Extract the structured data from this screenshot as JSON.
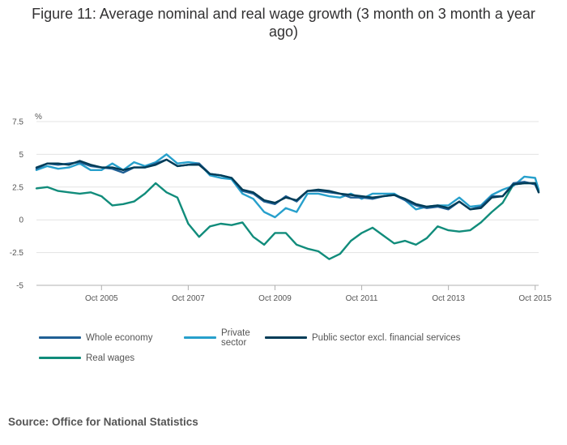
{
  "title": "Figure 11: Average nominal and real wage growth (3 month on 3 month a year ago)",
  "source": "Source: Office for National Statistics",
  "colors": {
    "whole_economy": "#206095",
    "private_sector": "#27a0cc",
    "public_sector": "#003c57",
    "real_wages": "#118c7b",
    "grid": "#e3e3e3",
    "axis": "#b0b0b0"
  },
  "chart_data": {
    "type": "line",
    "ylabel": "%",
    "ylim": [
      -5,
      7.5
    ],
    "yticks": [
      7.5,
      5,
      2.5,
      0,
      -2.5,
      -5
    ],
    "ytick_labels": [
      "7.5",
      "5",
      "2.5",
      "0",
      "-2.5",
      "-5"
    ],
    "xlim": [
      2004.25,
      2015.83
    ],
    "xticks": [
      2005.75,
      2007.75,
      2009.75,
      2011.75,
      2013.75,
      2015.75
    ],
    "xtick_labels": [
      "Oct 2005",
      "Oct 2007",
      "Oct 2009",
      "Oct 2011",
      "Oct 2013",
      "Oct 2015"
    ],
    "legend": [
      "Whole economy",
      "Private sector",
      "Public sector excl. financial services",
      "Real wages"
    ],
    "series": [
      {
        "name": "Whole economy",
        "color_key": "whole_economy",
        "x": [
          2004.25,
          2004.5,
          2004.75,
          2005.0,
          2005.25,
          2005.5,
          2005.75,
          2006.0,
          2006.25,
          2006.5,
          2006.75,
          2007.0,
          2007.25,
          2007.5,
          2007.75,
          2008.0,
          2008.25,
          2008.5,
          2008.75,
          2009.0,
          2009.25,
          2009.5,
          2009.75,
          2010.0,
          2010.25,
          2010.5,
          2010.75,
          2011.0,
          2011.25,
          2011.5,
          2011.75,
          2012.0,
          2012.25,
          2012.5,
          2012.75,
          2013.0,
          2013.25,
          2013.5,
          2013.75,
          2014.0,
          2014.25,
          2014.5,
          2014.75,
          2015.0,
          2015.25,
          2015.5,
          2015.75,
          2015.83
        ],
        "values": [
          3.9,
          4.3,
          4.2,
          4.3,
          4.4,
          4.1,
          4.0,
          3.9,
          3.6,
          4.0,
          4.0,
          4.3,
          4.6,
          4.1,
          4.2,
          4.3,
          3.5,
          3.4,
          3.2,
          2.2,
          2.0,
          1.4,
          1.2,
          1.8,
          1.4,
          2.2,
          2.2,
          2.1,
          2.0,
          1.7,
          1.7,
          1.6,
          1.8,
          1.9,
          1.5,
          1.1,
          0.9,
          1.0,
          0.8,
          1.4,
          0.8,
          1.0,
          1.8,
          1.8,
          2.8,
          2.9,
          2.7,
          2.1
        ]
      },
      {
        "name": "Private sector",
        "color_key": "private_sector",
        "x": [
          2004.25,
          2004.5,
          2004.75,
          2005.0,
          2005.25,
          2005.5,
          2005.75,
          2006.0,
          2006.25,
          2006.5,
          2006.75,
          2007.0,
          2007.25,
          2007.5,
          2007.75,
          2008.0,
          2008.25,
          2008.5,
          2008.75,
          2009.0,
          2009.25,
          2009.5,
          2009.75,
          2010.0,
          2010.25,
          2010.5,
          2010.75,
          2011.0,
          2011.25,
          2011.5,
          2011.75,
          2012.0,
          2012.25,
          2012.5,
          2012.75,
          2013.0,
          2013.25,
          2013.5,
          2013.75,
          2014.0,
          2014.25,
          2014.5,
          2014.75,
          2015.0,
          2015.25,
          2015.5,
          2015.75,
          2015.83
        ],
        "values": [
          3.8,
          4.1,
          3.9,
          4.0,
          4.3,
          3.8,
          3.8,
          4.3,
          3.8,
          4.4,
          4.1,
          4.4,
          5.0,
          4.3,
          4.4,
          4.3,
          3.4,
          3.2,
          3.1,
          2.0,
          1.6,
          0.6,
          0.2,
          0.9,
          0.6,
          2.0,
          2.0,
          1.8,
          1.7,
          2.0,
          1.6,
          2.0,
          2.0,
          2.0,
          1.5,
          0.8,
          1.0,
          1.1,
          1.1,
          1.7,
          1.0,
          1.1,
          1.9,
          2.3,
          2.6,
          3.3,
          3.2,
          2.3
        ]
      },
      {
        "name": "Public sector excl. financial services",
        "color_key": "public_sector",
        "x": [
          2004.25,
          2004.5,
          2004.75,
          2005.0,
          2005.25,
          2005.5,
          2005.75,
          2006.0,
          2006.25,
          2006.5,
          2006.75,
          2007.0,
          2007.25,
          2007.5,
          2007.75,
          2008.0,
          2008.25,
          2008.5,
          2008.75,
          2009.0,
          2009.25,
          2009.5,
          2009.75,
          2010.0,
          2010.25,
          2010.5,
          2010.75,
          2011.0,
          2011.25,
          2011.5,
          2011.75,
          2012.0,
          2012.25,
          2012.5,
          2012.75,
          2013.0,
          2013.25,
          2013.5,
          2013.75,
          2014.0,
          2014.25,
          2014.5,
          2014.75,
          2015.0,
          2015.25,
          2015.5,
          2015.75,
          2015.83
        ],
        "values": [
          4.0,
          4.3,
          4.3,
          4.2,
          4.5,
          4.2,
          4.0,
          4.0,
          3.8,
          4.0,
          4.0,
          4.2,
          4.6,
          4.1,
          4.2,
          4.2,
          3.5,
          3.4,
          3.2,
          2.3,
          2.1,
          1.5,
          1.3,
          1.7,
          1.5,
          2.2,
          2.3,
          2.2,
          2.0,
          1.9,
          1.8,
          1.7,
          1.8,
          1.9,
          1.6,
          1.2,
          1.0,
          1.1,
          0.9,
          1.4,
          0.8,
          0.9,
          1.7,
          1.8,
          2.7,
          2.8,
          2.8,
          2.1
        ]
      },
      {
        "name": "Real wages",
        "color_key": "real_wages",
        "x": [
          2004.25,
          2004.5,
          2004.75,
          2005.0,
          2005.25,
          2005.5,
          2005.75,
          2006.0,
          2006.25,
          2006.5,
          2006.75,
          2007.0,
          2007.25,
          2007.5,
          2007.75,
          2008.0,
          2008.25,
          2008.5,
          2008.75,
          2009.0,
          2009.25,
          2009.5,
          2009.75,
          2010.0,
          2010.25,
          2010.5,
          2010.75,
          2011.0,
          2011.25,
          2011.5,
          2011.75,
          2012.0,
          2012.25,
          2012.5,
          2012.75,
          2013.0,
          2013.25,
          2013.5,
          2013.75,
          2014.0,
          2014.25,
          2014.5,
          2014.75,
          2015.0,
          2015.25,
          2015.5,
          2015.75,
          2015.83
        ],
        "values": [
          2.4,
          2.5,
          2.2,
          2.1,
          2.0,
          2.1,
          1.8,
          1.1,
          1.2,
          1.4,
          2.0,
          2.8,
          2.1,
          1.7,
          -0.3,
          -1.3,
          -0.5,
          -0.3,
          -0.4,
          -0.2,
          -1.3,
          -1.9,
          -1.0,
          -1.0,
          -1.9,
          -2.2,
          -2.4,
          -3.0,
          -2.6,
          -1.6,
          -1.0,
          -0.6,
          -1.2,
          -1.8,
          -1.6,
          -1.9,
          -1.4,
          -0.5,
          -0.8,
          -0.9,
          -0.8,
          -0.2,
          0.6,
          1.3,
          2.7,
          2.8,
          2.8,
          2.2
        ]
      }
    ]
  }
}
